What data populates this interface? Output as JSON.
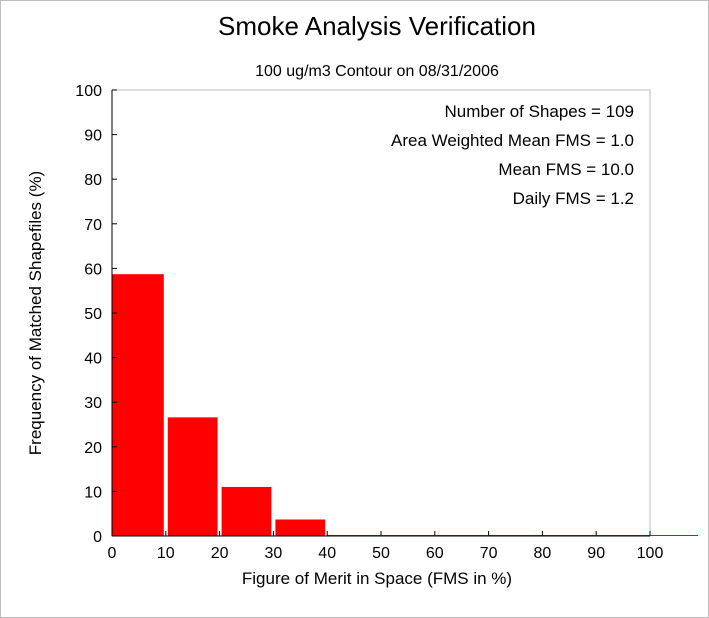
{
  "chart_data": {
    "type": "bar",
    "title": "Smoke Analysis Verification",
    "subtitle": "100 ug/m3 Contour on 08/31/2006",
    "xlabel": "Figure of Merit in Space (FMS in %)",
    "ylabel": "Frequency of Matched Shapefiles (%)",
    "xlim": [
      0,
      100
    ],
    "ylim": [
      0,
      100
    ],
    "x_ticks": [
      "0",
      "10",
      "20",
      "30",
      "40",
      "50",
      "60",
      "70",
      "80",
      "90",
      "100"
    ],
    "y_ticks": [
      "0",
      "10",
      "20",
      "30",
      "40",
      "50",
      "60",
      "70",
      "80",
      "90",
      "100"
    ],
    "bins": [
      {
        "from": 0,
        "to": 10,
        "value": 58.7
      },
      {
        "from": 10,
        "to": 20,
        "value": 26.6
      },
      {
        "from": 20,
        "to": 30,
        "value": 11.0
      },
      {
        "from": 30,
        "to": 40,
        "value": 3.7
      },
      {
        "from": 40,
        "to": 50,
        "value": 0
      },
      {
        "from": 50,
        "to": 60,
        "value": 0
      },
      {
        "from": 60,
        "to": 70,
        "value": 0
      },
      {
        "from": 70,
        "to": 80,
        "value": 0
      },
      {
        "from": 80,
        "to": 90,
        "value": 0
      },
      {
        "from": 90,
        "to": 100,
        "value": 0
      }
    ],
    "bar_color": "#ff0000",
    "grid": false,
    "stats_placement": "top-right",
    "stats": [
      "Number of Shapes = 109",
      "Area Weighted Mean FMS = 1.0",
      "Mean FMS = 10.0",
      "Daily FMS = 1.2"
    ]
  }
}
